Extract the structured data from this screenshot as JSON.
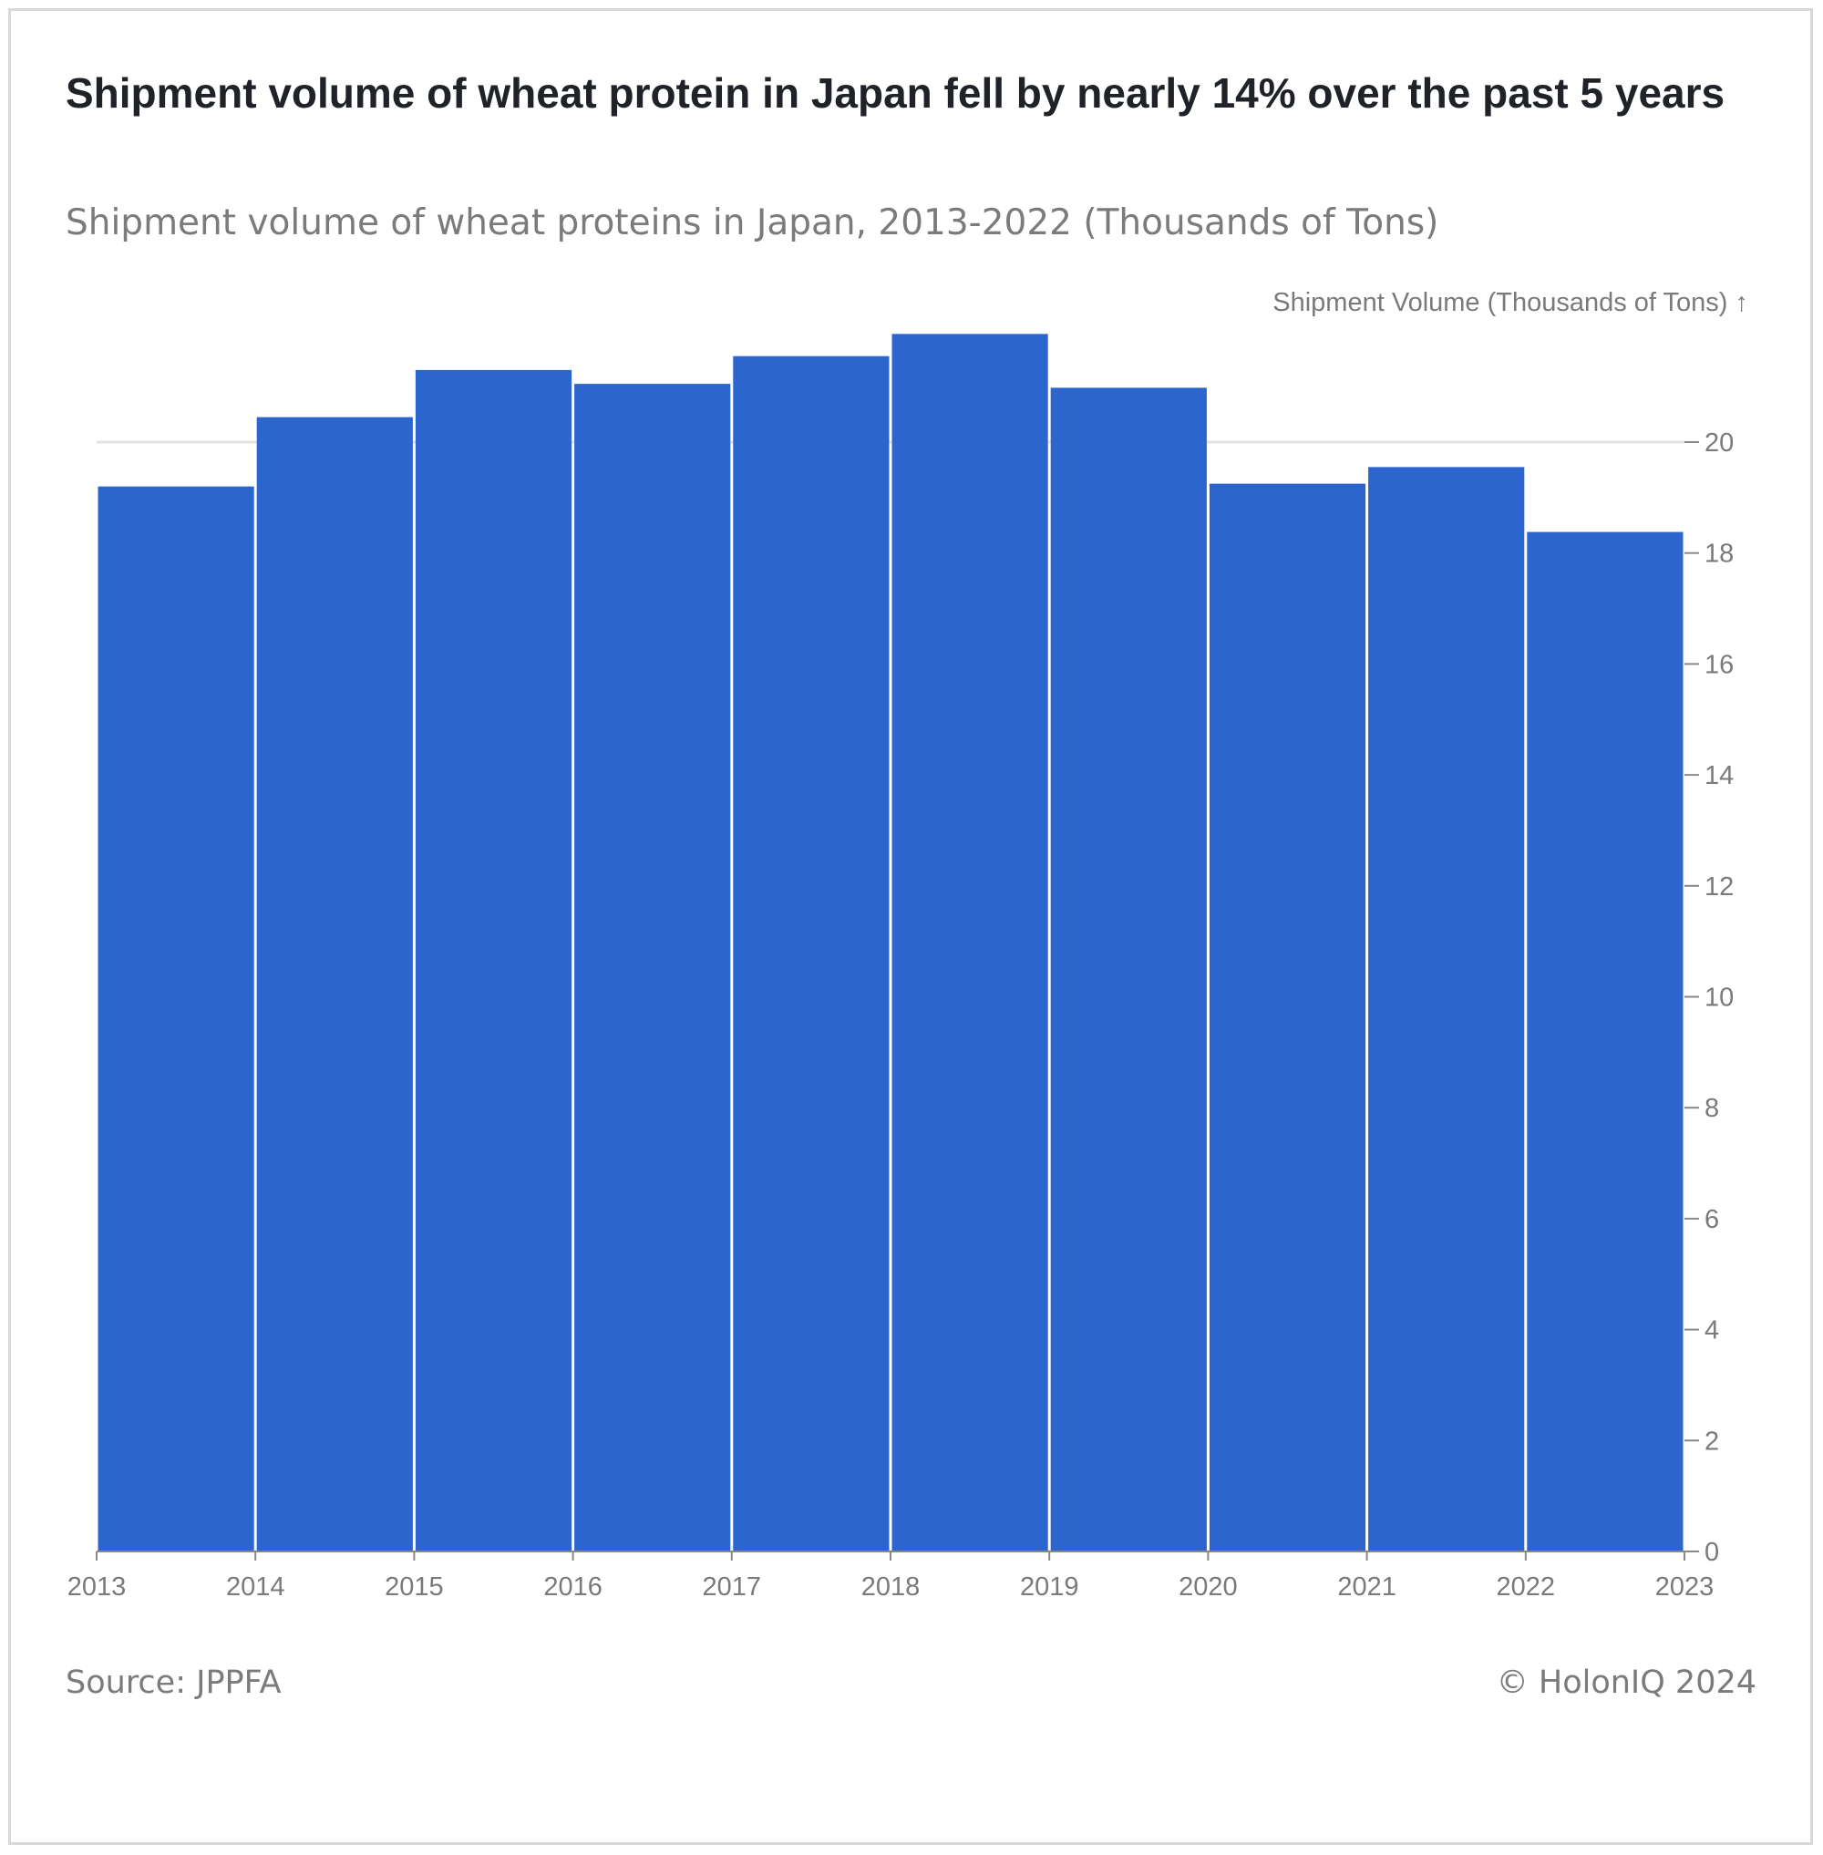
{
  "header": {
    "title": "Shipment volume of wheat protein in Japan fell by nearly 14% over the past 5 years",
    "subtitle": "Shipment volume of wheat proteins in Japan, 2013-2022 (Thousands of Tons)"
  },
  "footer": {
    "source": "Source: JPPFA",
    "copyright": "© HolonIQ 2024"
  },
  "colors": {
    "bar": "#2b65cd",
    "grid": "#e3e3e3",
    "axis": "#888888",
    "text": "#7a7a7a"
  },
  "chart_data": {
    "type": "bar",
    "title": "Shipment volume of wheat protein in Japan fell by nearly 14% over the past 5 years",
    "subtitle": "Shipment volume of wheat proteins in Japan, 2013-2022 (Thousands of Tons)",
    "ylabel": "Shipment Volume (Thousands of Tons) ↑",
    "xlabel": "",
    "y_axis_position": "right",
    "grid": "horizontal line at 20 only",
    "bins": [
      {
        "start": 2013,
        "end": 2014,
        "value": 19.2
      },
      {
        "start": 2014,
        "end": 2015,
        "value": 20.45
      },
      {
        "start": 2015,
        "end": 2016,
        "value": 21.3
      },
      {
        "start": 2016,
        "end": 2017,
        "value": 21.05
      },
      {
        "start": 2017,
        "end": 2018,
        "value": 21.55
      },
      {
        "start": 2018,
        "end": 2019,
        "value": 21.95
      },
      {
        "start": 2019,
        "end": 2020,
        "value": 20.98
      },
      {
        "start": 2020,
        "end": 2021,
        "value": 19.25
      },
      {
        "start": 2021,
        "end": 2022,
        "value": 19.55
      },
      {
        "start": 2022,
        "end": 2023,
        "value": 18.38
      }
    ],
    "x_ticks": [
      "2013",
      "2014",
      "2015",
      "2016",
      "2017",
      "2018",
      "2019",
      "2020",
      "2021",
      "2022",
      "2023"
    ],
    "y_ticks": [
      "0",
      "2",
      "4",
      "6",
      "8",
      "10",
      "12",
      "14",
      "16",
      "18",
      "20"
    ],
    "xlim": [
      2013,
      2023
    ],
    "ylim": [
      0,
      22
    ]
  }
}
